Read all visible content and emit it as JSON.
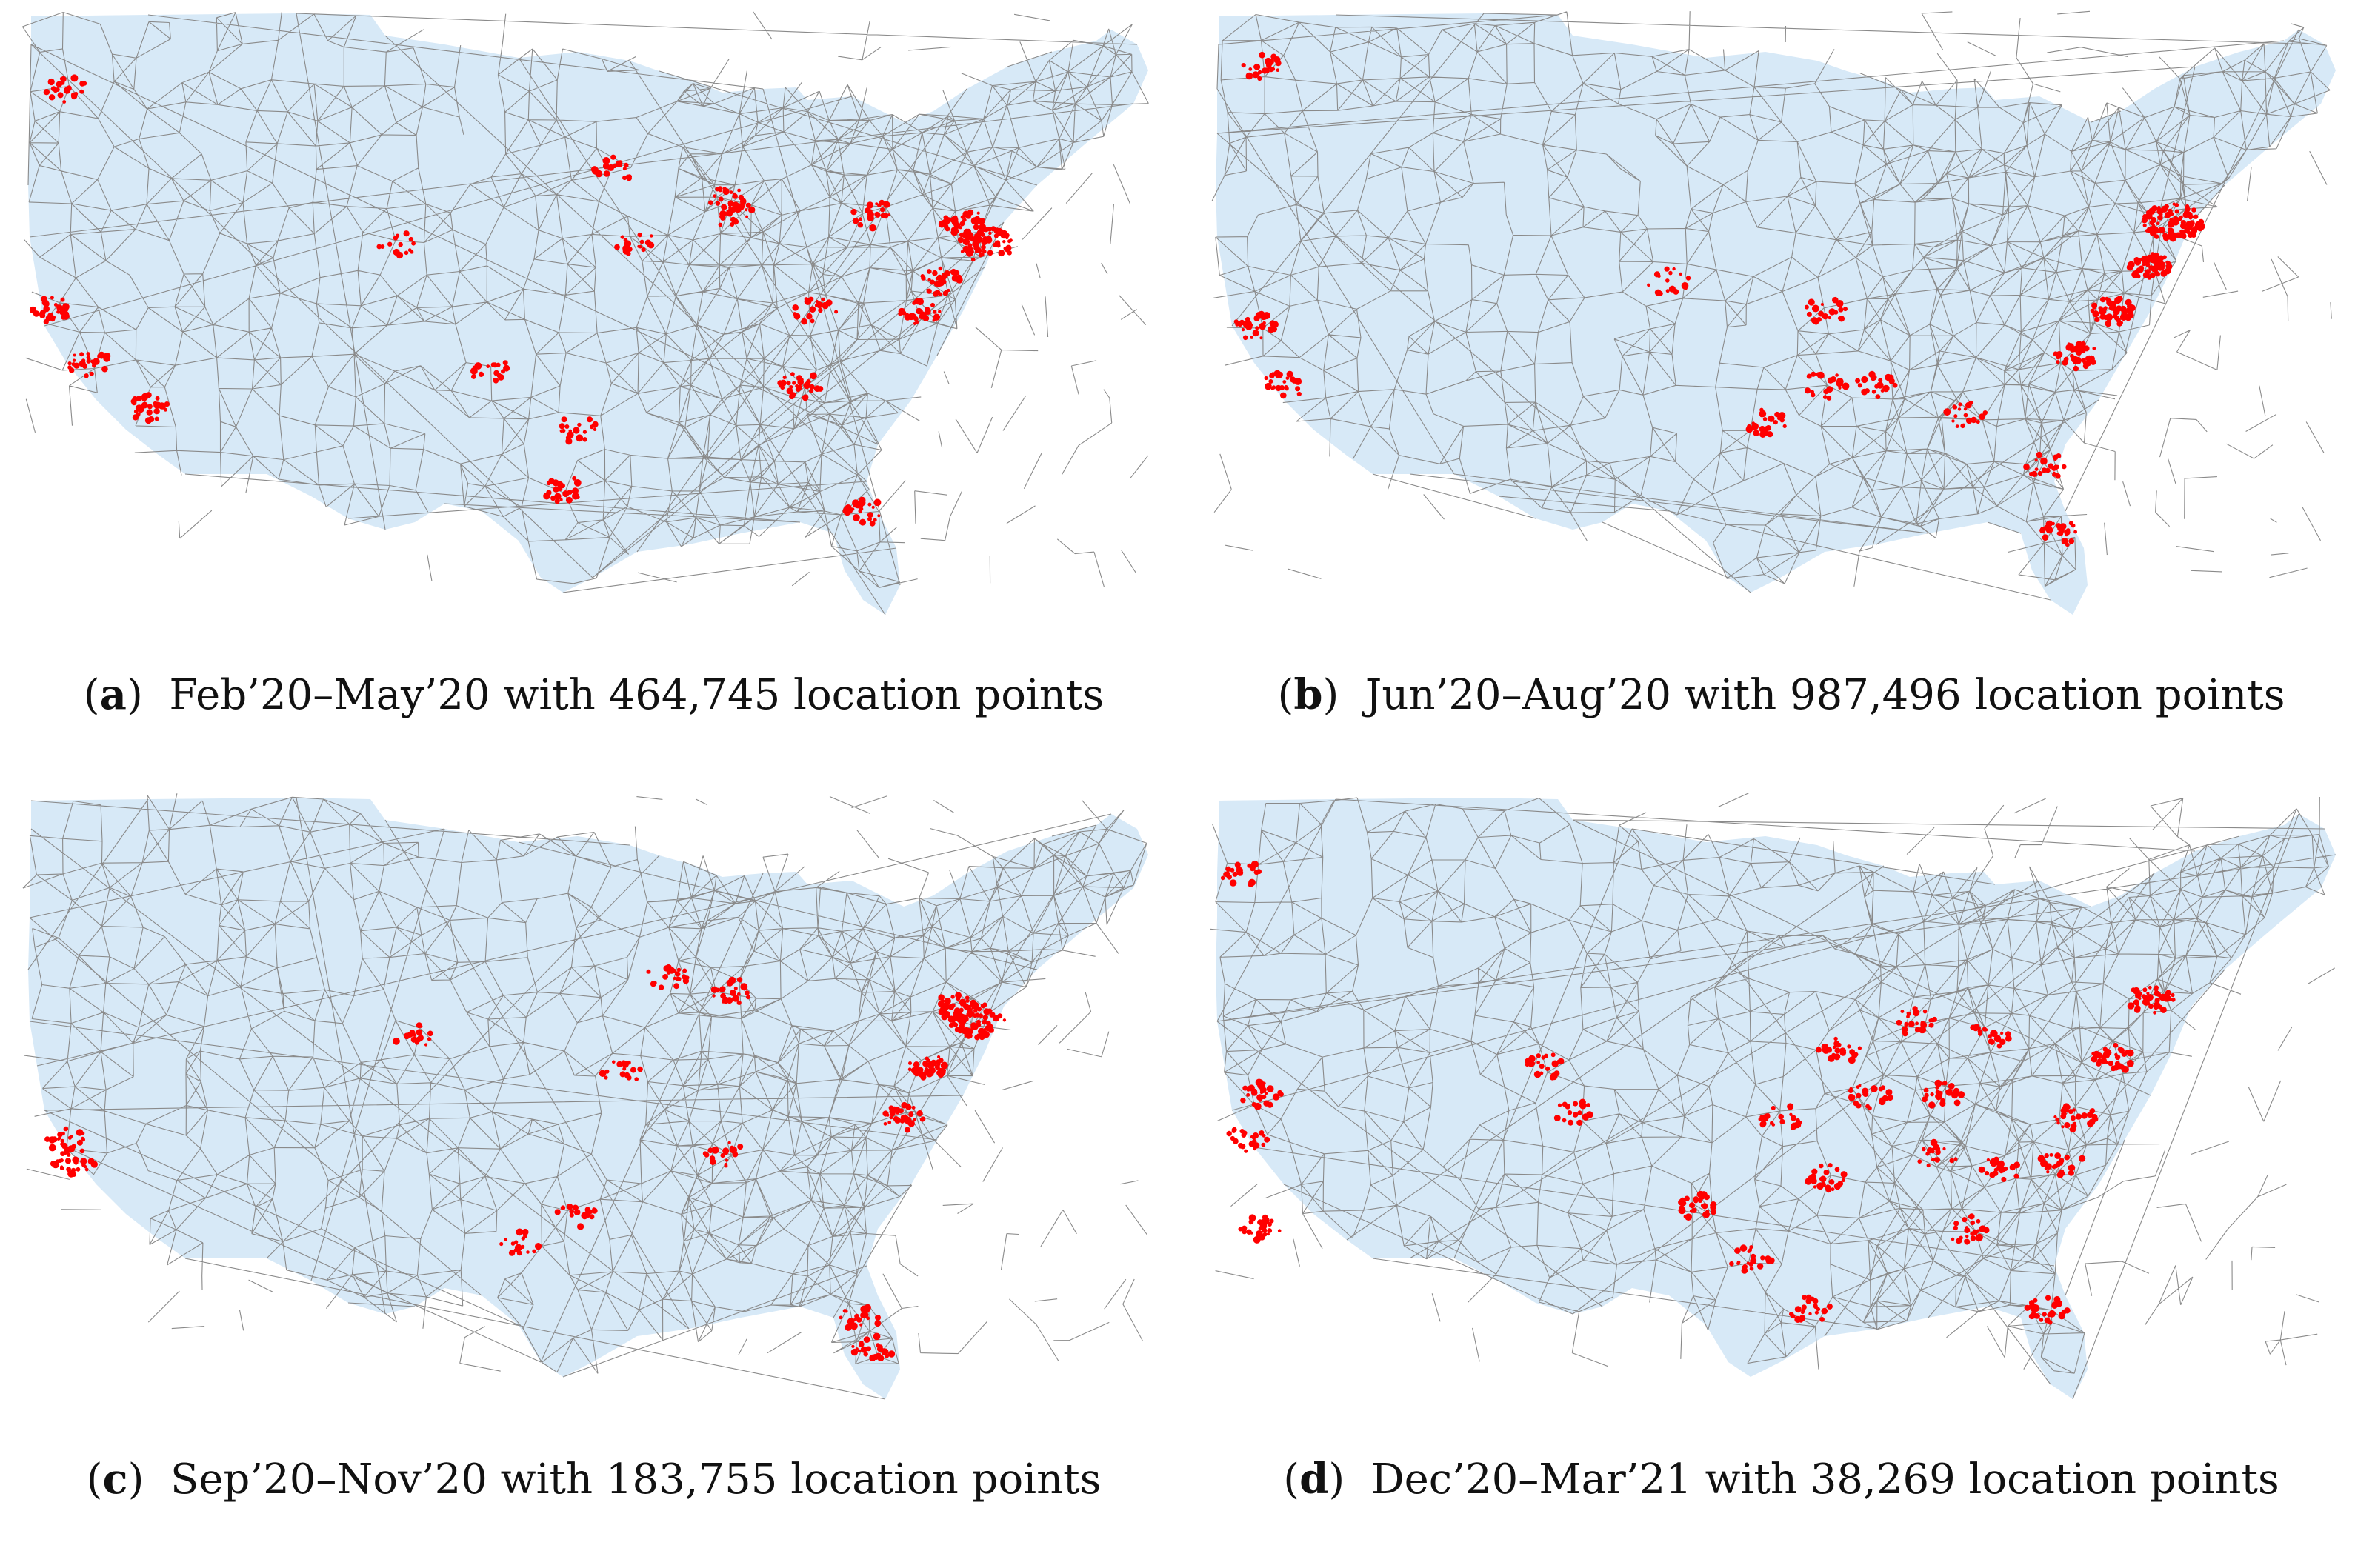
{
  "figure": {
    "panels": [
      {
        "id": "a",
        "label": "a",
        "caption": "Feb’20–May’20 with 464,745 location points"
      },
      {
        "id": "b",
        "label": "b",
        "caption": "Jun’20–Aug’20 with 987,496 location points"
      },
      {
        "id": "c",
        "label": "c",
        "caption": "Sep’20–Nov’20 with 183,755 location points"
      },
      {
        "id": "d",
        "label": "d",
        "caption": "Dec’20–Mar’21 with 38,269 location points"
      }
    ]
  },
  "colors": {
    "land": "#d7e9f7",
    "mesh": "#8a8a8a",
    "points": "#ff0000"
  }
}
